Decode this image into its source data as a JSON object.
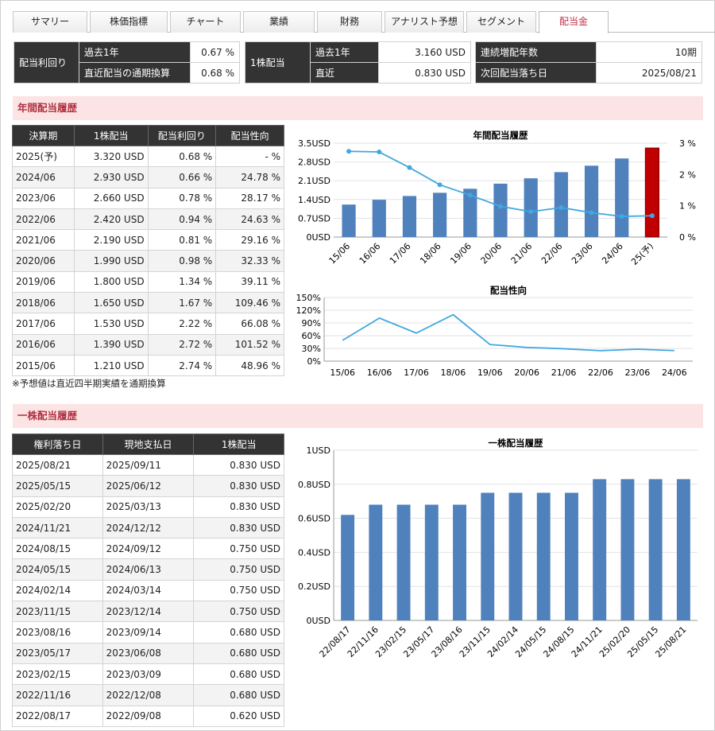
{
  "tabs": [
    {
      "label": "サマリー"
    },
    {
      "label": "株価指標"
    },
    {
      "label": "チャート"
    },
    {
      "label": "業績"
    },
    {
      "label": "財務"
    },
    {
      "label": "アナリスト予想"
    },
    {
      "label": "セグメント"
    },
    {
      "label": "配当金"
    }
  ],
  "summary": {
    "yield": {
      "title": "配当利回り",
      "r1_label": "過去1年",
      "r1_value": "0.67 %",
      "r2_label": "直近配当の通期換算",
      "r2_value": "0.68 %"
    },
    "dps": {
      "title": "1株配当",
      "r1_label": "過去1年",
      "r1_value": "3.160 USD",
      "r2_label": "直近",
      "r2_value": "0.830 USD"
    },
    "other": {
      "r1_label": "連続増配年数",
      "r1_value": "10期",
      "r2_label": "次回配当落ち日",
      "r2_value": "2025/08/21"
    }
  },
  "annual": {
    "section_title": "年間配当履歴",
    "headers": [
      "決算期",
      "1株配当",
      "配当利回り",
      "配当性向"
    ],
    "rows": [
      [
        "2025(予)",
        "3.320 USD",
        "0.68 %",
        "- %"
      ],
      [
        "2024/06",
        "2.930 USD",
        "0.66 %",
        "24.78 %"
      ],
      [
        "2023/06",
        "2.660 USD",
        "0.78 %",
        "28.17 %"
      ],
      [
        "2022/06",
        "2.420 USD",
        "0.94 %",
        "24.63 %"
      ],
      [
        "2021/06",
        "2.190 USD",
        "0.81 %",
        "29.16 %"
      ],
      [
        "2020/06",
        "1.990 USD",
        "0.98 %",
        "32.33 %"
      ],
      [
        "2019/06",
        "1.800 USD",
        "1.34 %",
        "39.11 %"
      ],
      [
        "2018/06",
        "1.650 USD",
        "1.67 %",
        "109.46 %"
      ],
      [
        "2017/06",
        "1.530 USD",
        "2.22 %",
        "66.08 %"
      ],
      [
        "2016/06",
        "1.390 USD",
        "2.72 %",
        "101.52 %"
      ],
      [
        "2015/06",
        "1.210 USD",
        "2.74 %",
        "48.96 %"
      ]
    ],
    "note": "※予想値は直近四半期実績を通期換算"
  },
  "per_share": {
    "section_title": "一株配当履歴",
    "headers": [
      "権利落ち日",
      "現地支払日",
      "1株配当"
    ],
    "rows": [
      [
        "2025/08/21",
        "2025/09/11",
        "0.830 USD"
      ],
      [
        "2025/05/15",
        "2025/06/12",
        "0.830 USD"
      ],
      [
        "2025/02/20",
        "2025/03/13",
        "0.830 USD"
      ],
      [
        "2024/11/21",
        "2024/12/12",
        "0.830 USD"
      ],
      [
        "2024/08/15",
        "2024/09/12",
        "0.750 USD"
      ],
      [
        "2024/05/15",
        "2024/06/13",
        "0.750 USD"
      ],
      [
        "2024/02/14",
        "2024/03/14",
        "0.750 USD"
      ],
      [
        "2023/11/15",
        "2023/12/14",
        "0.750 USD"
      ],
      [
        "2023/08/16",
        "2023/09/14",
        "0.680 USD"
      ],
      [
        "2023/05/17",
        "2023/06/08",
        "0.680 USD"
      ],
      [
        "2023/02/15",
        "2023/03/09",
        "0.680 USD"
      ],
      [
        "2022/11/16",
        "2022/12/08",
        "0.680 USD"
      ],
      [
        "2022/08/17",
        "2022/09/08",
        "0.620 USD"
      ]
    ]
  },
  "colors": {
    "bar": "#4f81bd",
    "bar_forecast": "#c00000",
    "line": "#41a7e0",
    "accent": "#c0304a"
  },
  "chart_data": [
    {
      "type": "bar",
      "title": "年間配当履歴",
      "categories": [
        "15/06",
        "16/06",
        "17/06",
        "18/06",
        "19/06",
        "20/06",
        "21/06",
        "22/06",
        "23/06",
        "24/06",
        "25(予)"
      ],
      "series": [
        {
          "values": [
            1.21,
            1.39,
            1.53,
            1.65,
            1.8,
            1.99,
            2.19,
            2.42,
            2.66,
            2.93,
            3.32
          ]
        },
        {
          "values": [
            2.74,
            2.72,
            2.22,
            1.67,
            1.34,
            0.98,
            0.81,
            0.94,
            0.78,
            0.66,
            0.68
          ]
        }
      ],
      "y_ticks": [
        "0USD",
        "0.7USD",
        "1.4USD",
        "2.1USD",
        "2.8USD",
        "3.5USD"
      ],
      "y2_ticks": [
        "0 %",
        "1 %",
        "2 %",
        "3 %"
      ],
      "ylim": [
        0,
        3.5
      ],
      "y2lim": [
        0,
        3
      ],
      "grid": true
    },
    {
      "type": "line",
      "title": "配当性向",
      "categories": [
        "15/06",
        "16/06",
        "17/06",
        "18/06",
        "19/06",
        "20/06",
        "21/06",
        "22/06",
        "23/06",
        "24/06"
      ],
      "values": [
        48.96,
        101.52,
        66.08,
        109.46,
        39.11,
        32.33,
        29.16,
        24.63,
        28.17,
        24.78
      ],
      "y_ticks": [
        "0%",
        "30%",
        "60%",
        "90%",
        "120%",
        "150%"
      ],
      "ylim": [
        0,
        150
      ],
      "grid": true
    },
    {
      "type": "bar",
      "title": "一株配当履歴",
      "categories": [
        "22/08/17",
        "22/11/16",
        "23/02/15",
        "23/05/17",
        "23/08/16",
        "23/11/15",
        "24/02/14",
        "24/05/15",
        "24/08/15",
        "24/11/21",
        "25/02/20",
        "25/05/15",
        "25/08/21"
      ],
      "values": [
        0.62,
        0.68,
        0.68,
        0.68,
        0.68,
        0.75,
        0.75,
        0.75,
        0.75,
        0.83,
        0.83,
        0.83,
        0.83
      ],
      "y_ticks": [
        "0USD",
        "0.2USD",
        "0.4USD",
        "0.6USD",
        "0.8USD",
        "1USD"
      ],
      "ylim": [
        0,
        1
      ],
      "grid": true
    }
  ]
}
